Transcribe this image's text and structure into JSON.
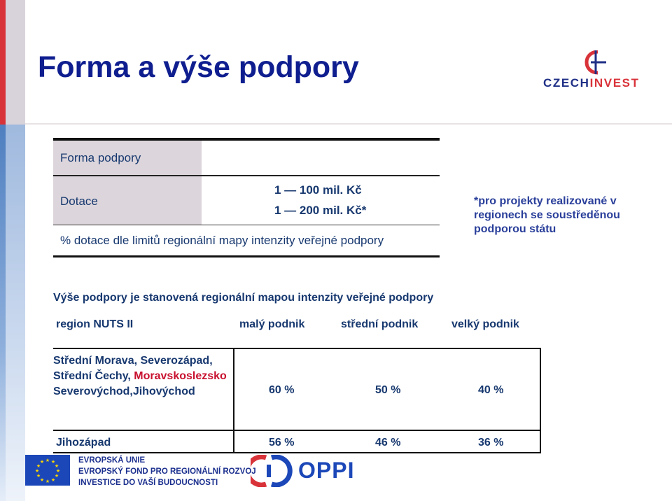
{
  "slide": {
    "title": "Forma a výše podpory"
  },
  "logo": {
    "part1": "CZECH",
    "part2": "INVEST",
    "brand_blue": "#1f2f86",
    "brand_red": "#d9333a"
  },
  "table_top": {
    "header": "Forma podpory",
    "row_dotace": {
      "label": "Dotace",
      "value1": "1 — 100 mil. Kč",
      "value2": "1 — 200 mil. Kč*"
    },
    "row_percent": {
      "label": "% dotace dle limitů regionální mapy intenzity veřejné podpory"
    }
  },
  "note": "*pro projekty realizované v regionech se soustředěnou podporou státu",
  "table_bottom": {
    "heading": "Výše podpory je stanovená regionální mapou intenzity veřejné podpory",
    "columns": [
      "region NUTS II",
      "malý podnik",
      "střední podnik",
      "velký podnik"
    ],
    "row1": {
      "region_part1": "Střední Morava, Severozápad, Střední Čechy, ",
      "region_highlight": "Moravskoslezsko",
      "region_part2": " Severovýchod,Jihovýchod",
      "values": [
        "60 %",
        "50 %",
        "40 %"
      ]
    },
    "row2": {
      "region": "Jihozápad",
      "values": [
        "56 %",
        "46 %",
        "36 %"
      ]
    }
  },
  "footer": {
    "eu_lines": [
      "EVROPSKÁ UNIE",
      "EVROPSKÝ FOND PRO REGIONÁLNÍ ROZVOJ",
      "INVESTICE DO VAŠÍ BUDOUCNOSTI"
    ],
    "oppi": "OPPI",
    "eu_blue": "#1b47b8",
    "eu_star": "#ffd700"
  }
}
